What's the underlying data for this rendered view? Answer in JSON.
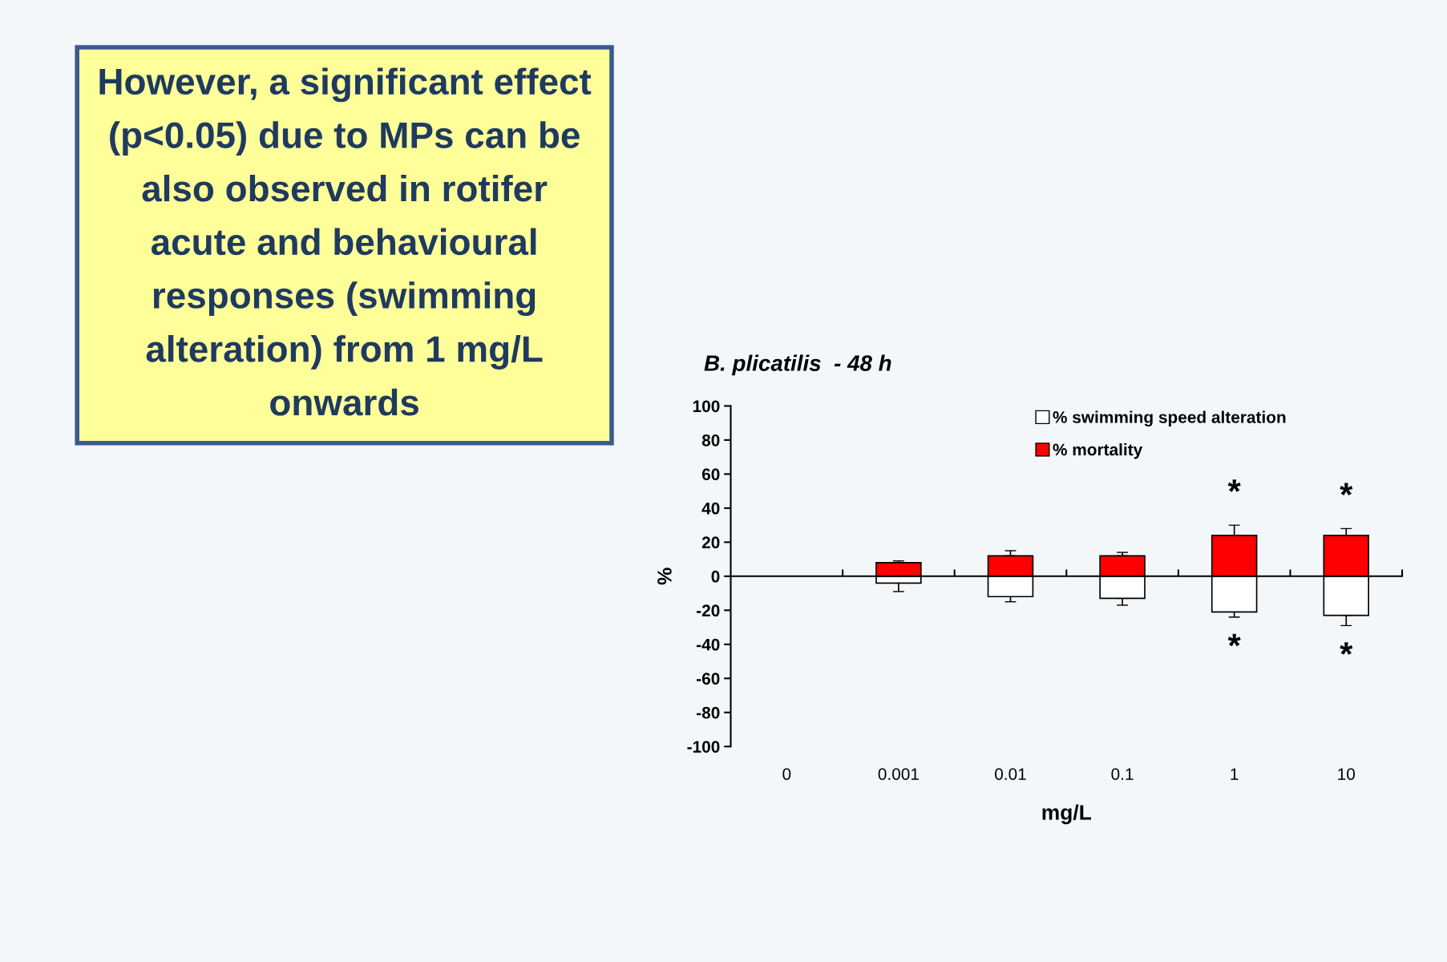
{
  "chart_data": {
    "type": "bar",
    "stacked": true,
    "title": "B. plicatilis  - 48 h",
    "xlabel": "mg/L",
    "ylabel": "%",
    "categories": [
      "0",
      "0.001",
      "0.01",
      "0.1",
      "1",
      "10"
    ],
    "series": [
      {
        "name": "% swimming speed alteration",
        "color": "#ffffff",
        "values": [
          null,
          -4,
          -12,
          -13,
          -21,
          -23
        ],
        "errors": [
          null,
          [
            -9,
            -4
          ],
          [
            -15,
            -12
          ],
          [
            -17,
            -13
          ],
          [
            -24,
            -21
          ],
          [
            -29,
            -23
          ]
        ]
      },
      {
        "name": "% mortality",
        "color": "#ff0000",
        "values": [
          null,
          8,
          12,
          12,
          24,
          24
        ],
        "errors": [
          null,
          [
            8,
            9
          ],
          [
            12,
            15
          ],
          [
            12,
            14
          ],
          [
            24,
            30
          ],
          [
            24,
            28
          ]
        ]
      }
    ],
    "ylim": [
      -100,
      100
    ],
    "yticks": [
      -100,
      -80,
      -60,
      -40,
      -20,
      0,
      20,
      40,
      60,
      80,
      100
    ],
    "legend": "top right",
    "annotations": [
      "However, a significant effect\n(p<0.05) due to MPs can be\nalso observed in rotifer\nacute and behavioural\nresponses (swimming\nalteration) from 1 mg/L\nonwards",
      {
        "text": "*",
        "x": "1",
        "y": 30
      },
      {
        "text": "*",
        "x": "10",
        "y": 28
      },
      {
        "text": "*",
        "x": "1",
        "y": -24
      },
      {
        "text": "*",
        "x": "10",
        "y": -29
      }
    ]
  }
}
